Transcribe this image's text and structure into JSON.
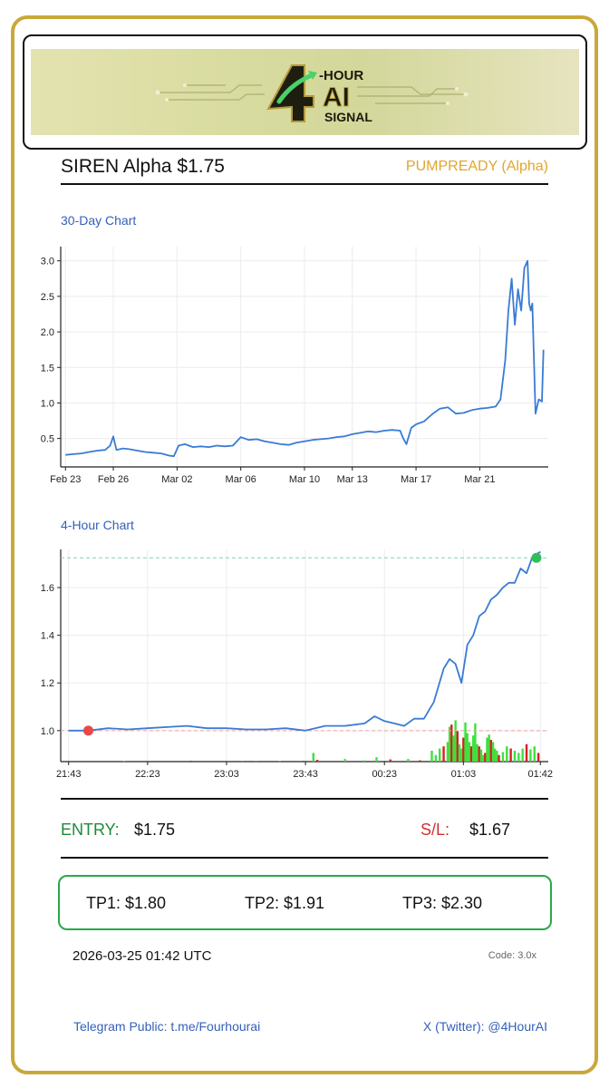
{
  "banner": {
    "logo_text_top": "-HOUR",
    "logo_text_mid": "AI",
    "logo_text_bottom": "SIGNAL",
    "logo_digit": "4"
  },
  "header": {
    "coin_title": "SIREN Alpha $1.75",
    "signal_tag": "PUMPREADY (Alpha)"
  },
  "sections": {
    "chart30_label": "30-Day Chart",
    "chart4h_label": "4-Hour Chart"
  },
  "trade": {
    "entry_label": "ENTRY:",
    "entry_value": "$1.75",
    "sl_label": "S/L:",
    "sl_value": "$1.67",
    "tp1": "TP1: $1.80",
    "tp2": "TP2: $1.91",
    "tp3": "TP3: $2.30"
  },
  "meta": {
    "timestamp": "2026-03-25 01:42 UTC",
    "code": "Code: 3.0x"
  },
  "footer": {
    "telegram": "Telegram Public: t.me/Fourhourai",
    "twitter": "X (Twitter): @4HourAI"
  },
  "colors": {
    "border_gold": "#c9a83a",
    "line_blue": "#3a7bd5",
    "entry_green": "#1e8a3a",
    "sl_red": "#d32f2f",
    "tag_orange": "#e1a52e",
    "tp_green": "#2aa84a"
  },
  "chart_data": [
    {
      "type": "line",
      "title": "30-Day Chart",
      "xlabel": "",
      "ylabel": "",
      "x_ticks": [
        "Feb 23",
        "Feb 26",
        "Mar 02",
        "Mar 06",
        "Mar 10",
        "Mar 13",
        "Mar 17",
        "Mar 21"
      ],
      "x_tick_days": [
        0,
        3,
        7,
        11,
        15,
        18,
        22,
        26
      ],
      "y_ticks": [
        0.5,
        1.0,
        1.5,
        2.0,
        2.5,
        3.0
      ],
      "xlim": [
        -0.3,
        30.3
      ],
      "ylim": [
        0.1,
        3.2
      ],
      "grid": true,
      "series": [
        {
          "name": "price",
          "x": [
            0,
            0.5,
            1,
            1.5,
            2,
            2.5,
            2.8,
            3.0,
            3.2,
            3.6,
            4,
            4.5,
            5,
            5.5,
            6,
            6.5,
            6.8,
            7.1,
            7.5,
            8,
            8.5,
            9,
            9.5,
            10,
            10.5,
            11,
            11.5,
            12,
            12.5,
            13,
            13.5,
            14,
            14.5,
            15,
            15.5,
            16,
            16.5,
            17,
            17.5,
            18,
            18.5,
            19,
            19.5,
            20,
            20.5,
            21,
            21.2,
            21.4,
            21.7,
            22,
            22.5,
            23,
            23.5,
            24,
            24.5,
            25,
            25.5,
            26,
            26.5,
            27,
            27.3,
            27.6,
            27.8,
            28.0,
            28.2,
            28.4,
            28.6,
            28.8,
            29.0,
            29.1,
            29.2,
            29.3,
            29.5,
            29.7,
            29.9,
            30
          ],
          "y": [
            0.27,
            0.28,
            0.29,
            0.31,
            0.33,
            0.34,
            0.4,
            0.53,
            0.34,
            0.36,
            0.35,
            0.33,
            0.31,
            0.3,
            0.29,
            0.26,
            0.25,
            0.4,
            0.42,
            0.38,
            0.39,
            0.38,
            0.4,
            0.39,
            0.4,
            0.52,
            0.48,
            0.49,
            0.46,
            0.44,
            0.42,
            0.41,
            0.44,
            0.46,
            0.48,
            0.49,
            0.5,
            0.52,
            0.53,
            0.56,
            0.58,
            0.6,
            0.59,
            0.61,
            0.62,
            0.61,
            0.5,
            0.42,
            0.65,
            0.7,
            0.74,
            0.84,
            0.92,
            0.94,
            0.85,
            0.86,
            0.9,
            0.92,
            0.93,
            0.95,
            1.05,
            1.6,
            2.3,
            2.75,
            2.1,
            2.6,
            2.3,
            2.9,
            3.0,
            2.4,
            2.3,
            2.4,
            0.85,
            1.05,
            1.02,
            1.75
          ]
        }
      ]
    },
    {
      "type": "line",
      "title": "4-Hour Chart",
      "xlabel": "",
      "ylabel": "",
      "x_ticks": [
        "21:43",
        "22:23",
        "23:03",
        "23:43",
        "00:23",
        "01:03",
        "01:42"
      ],
      "x_tick_minutes": [
        0,
        40,
        80,
        120,
        160,
        200,
        239
      ],
      "y_ticks": [
        1.0,
        1.2,
        1.4,
        1.6
      ],
      "xlim": [
        -4,
        243
      ],
      "ylim": [
        0.87,
        1.76
      ],
      "grid": true,
      "entry_marker": {
        "x": 10,
        "y": 1.0,
        "color": "#e84848",
        "label": "entry level",
        "level": 1.0
      },
      "current_marker": {
        "x": 237,
        "y": 1.725,
        "color": "#2fbf5a",
        "label": "current level",
        "level": 1.725
      },
      "series": [
        {
          "name": "price",
          "x": [
            0,
            10,
            20,
            30,
            40,
            50,
            60,
            70,
            80,
            90,
            100,
            110,
            120,
            130,
            140,
            150,
            155,
            160,
            165,
            170,
            175,
            180,
            185,
            190,
            193,
            196,
            199,
            202,
            205,
            208,
            211,
            214,
            217,
            220,
            223,
            226,
            229,
            232,
            235,
            239
          ],
          "y": [
            1.0,
            1.0,
            1.01,
            1.005,
            1.01,
            1.015,
            1.02,
            1.01,
            1.01,
            1.005,
            1.005,
            1.01,
            1.0,
            1.02,
            1.02,
            1.03,
            1.06,
            1.04,
            1.03,
            1.02,
            1.05,
            1.05,
            1.12,
            1.26,
            1.3,
            1.28,
            1.2,
            1.36,
            1.4,
            1.48,
            1.5,
            1.55,
            1.57,
            1.6,
            1.62,
            1.62,
            1.68,
            1.66,
            1.73,
            1.75
          ]
        }
      ],
      "volume": {
        "x": [
          28,
          62,
          88,
          95,
          107,
          118,
          118.5,
          124,
          126,
          140,
          150,
          156,
          163,
          172,
          178,
          184,
          186,
          188,
          190,
          192,
          193,
          194,
          195,
          196,
          197,
          198,
          199,
          200,
          201,
          202,
          203,
          204,
          205,
          206,
          207,
          208,
          209,
          210,
          211,
          212,
          213,
          214,
          215,
          216,
          217,
          218,
          220,
          222,
          224,
          226,
          228,
          230,
          232,
          234,
          236,
          238
        ],
        "values": [
          0.02,
          0.02,
          0.01,
          0.01,
          0.02,
          0.02,
          0.02,
          0.2,
          0.04,
          0.06,
          0.03,
          0.1,
          0.05,
          0.06,
          0.03,
          0.25,
          0.15,
          0.3,
          0.35,
          0.45,
          0.8,
          0.85,
          0.6,
          0.95,
          0.7,
          0.4,
          0.3,
          0.55,
          0.9,
          0.65,
          0.45,
          0.35,
          0.6,
          0.88,
          0.4,
          0.35,
          0.28,
          0.15,
          0.2,
          0.55,
          0.62,
          0.5,
          0.45,
          0.3,
          0.25,
          0.15,
          0.22,
          0.35,
          0.3,
          0.25,
          0.2,
          0.3,
          0.4,
          0.28,
          0.35,
          0.2
        ],
        "colors": [
          "g",
          "r",
          "r",
          "r",
          "g",
          "g",
          "r",
          "g",
          "r",
          "g",
          "g",
          "g",
          "r",
          "g",
          "r",
          "g",
          "g",
          "g",
          "r",
          "g",
          "g",
          "r",
          "g",
          "g",
          "r",
          "g",
          "g",
          "r",
          "g",
          "g",
          "g",
          "r",
          "g",
          "g",
          "g",
          "r",
          "g",
          "g",
          "r",
          "g",
          "g",
          "r",
          "g",
          "g",
          "g",
          "r",
          "g",
          "g",
          "r",
          "g",
          "g",
          "g",
          "r",
          "g",
          "g",
          "r"
        ]
      }
    }
  ]
}
